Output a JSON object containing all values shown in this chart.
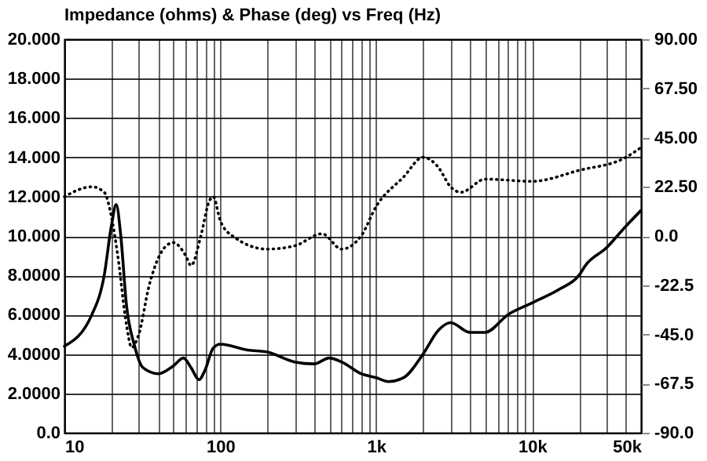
{
  "chart_data": {
    "type": "line",
    "title": "Impedance (ohms) & Phase (deg) vs Freq (Hz)",
    "log": "x",
    "grid": true,
    "xlim": [
      10,
      50000
    ],
    "xticks": [
      10,
      {
        "value": 20,
        "label": null
      },
      {
        "value": 30,
        "label": null
      },
      {
        "value": 40,
        "label": null
      },
      {
        "value": 50,
        "label": null
      },
      {
        "value": 60,
        "label": null
      },
      {
        "value": 70,
        "label": null
      },
      {
        "value": 80,
        "label": null
      },
      {
        "value": 90,
        "label": null
      },
      100,
      {
        "value": 200,
        "label": null
      },
      {
        "value": 300,
        "label": null
      },
      {
        "value": 400,
        "label": null
      },
      {
        "value": 500,
        "label": null
      },
      {
        "value": 600,
        "label": null
      },
      {
        "value": 700,
        "label": null
      },
      {
        "value": 800,
        "label": null
      },
      {
        "value": 900,
        "label": null
      },
      {
        "value": 1000,
        "label": "1k"
      },
      {
        "value": 2000,
        "label": null
      },
      {
        "value": 3000,
        "label": null
      },
      {
        "value": 4000,
        "label": null
      },
      {
        "value": 5000,
        "label": null
      },
      {
        "value": 6000,
        "label": null
      },
      {
        "value": 7000,
        "label": null
      },
      {
        "value": 8000,
        "label": null
      },
      {
        "value": 9000,
        "label": null
      },
      {
        "value": 10000,
        "label": "10k"
      },
      {
        "value": 20000,
        "label": null
      },
      {
        "value": 30000,
        "label": null
      },
      {
        "value": 40000,
        "label": null
      },
      {
        "value": 50000,
        "label": "50k"
      }
    ],
    "ylim": [
      0,
      20
    ],
    "yticks": [
      {
        "value": 0,
        "label": "0.0"
      },
      {
        "value": 2,
        "label": "2.0000"
      },
      {
        "value": 4,
        "label": "4.0000"
      },
      {
        "value": 6,
        "label": "6.0000"
      },
      {
        "value": 8,
        "label": "8.0000"
      },
      {
        "value": 10,
        "label": "10.000"
      },
      {
        "value": 12,
        "label": "12.000"
      },
      {
        "value": 14,
        "label": "14.000"
      },
      {
        "value": 16,
        "label": "16.000"
      },
      {
        "value": 18,
        "label": "18.000"
      },
      {
        "value": 20,
        "label": "20.000"
      }
    ],
    "y2lim": [
      -90,
      90
    ],
    "y2ticks": [
      {
        "value": -90,
        "label": "-90.0"
      },
      {
        "value": -67.5,
        "label": "-67.5"
      },
      {
        "value": -45,
        "label": "-45.0"
      },
      {
        "value": -22.5,
        "label": "-22.5"
      },
      {
        "value": 0,
        "label": "0.0"
      },
      {
        "value": 22.5,
        "label": "22.50"
      },
      {
        "value": 45,
        "label": "45.00"
      },
      {
        "value": 67.5,
        "label": "67.50"
      },
      {
        "value": 90,
        "label": "90.00"
      }
    ],
    "series": [
      {
        "color": "#000000",
        "line_style": "solid",
        "x": [
          10,
          15,
          18,
          20,
          21.5,
          23,
          25,
          28,
          32,
          40,
          50,
          58,
          65,
          73,
          80,
          90,
          100,
          150,
          200,
          300,
          400,
          500,
          600,
          800,
          1000,
          1200,
          1500,
          2000,
          2500,
          3000,
          4000,
          5000,
          7000,
          10000,
          15000,
          20000,
          22000,
          30000,
          40000,
          50000
        ],
        "values": [
          4.4,
          6,
          8,
          10.5,
          11.6,
          10,
          6.5,
          4.5,
          3.3,
          3.0,
          3.4,
          3.8,
          3.3,
          2.7,
          3.2,
          4.3,
          4.5,
          4.2,
          4.1,
          3.6,
          3.5,
          3.8,
          3.6,
          3.0,
          2.8,
          2.6,
          2.8,
          4.0,
          5.2,
          5.6,
          5.1,
          5.1,
          6.0,
          6.6,
          7.3,
          8.0,
          8.5,
          9.4,
          10.5,
          11.3
        ]
      },
      {
        "color": "#000000",
        "line_style": "dotted",
        "axis": "y2",
        "x": [
          10,
          15,
          18,
          20,
          22,
          25,
          27,
          30,
          35,
          45,
          50,
          60,
          65,
          75,
          85,
          90,
          100,
          120,
          200,
          300,
          450,
          600,
          800,
          1000,
          1500,
          2000,
          2500,
          3000,
          3500,
          5000,
          10000,
          20000,
          40000,
          50000
        ],
        "values": [
          18,
          22.5,
          20,
          9,
          -9,
          -40.5,
          -51,
          -45,
          -22.5,
          -4.5,
          -3,
          -9,
          -13.5,
          0,
          16,
          18,
          7,
          0,
          -6,
          -4.5,
          1,
          -6,
          0,
          13.5,
          27,
          36,
          31.5,
          22.5,
          20,
          26,
          25,
          30,
          36,
          40.5
        ]
      }
    ]
  }
}
